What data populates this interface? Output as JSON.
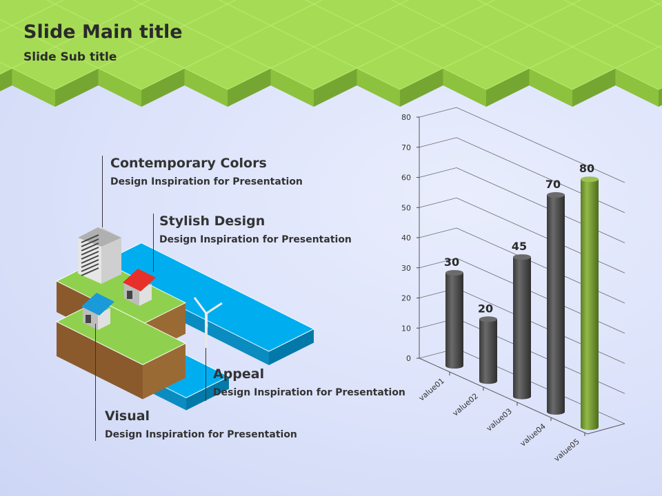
{
  "slide": {
    "title": "Slide Main title",
    "subtitle": "Slide Sub title"
  },
  "features": [
    {
      "title": "Contemporary Colors",
      "text": "Design Inspiration for Presentation"
    },
    {
      "title": "Stylish Design",
      "text": "Design Inspiration for Presentation"
    },
    {
      "title": "Appeal",
      "text": "Design Inspiration for Presentation"
    },
    {
      "title": "Visual",
      "text": "Design Inspiration for Presentation"
    }
  ],
  "colors": {
    "tile_top": "#a6dc55",
    "tile_left": "#8dc23e",
    "tile_right": "#76a632",
    "bar": "#4d4d4d",
    "highlight_bar": "#7aa036",
    "water": "#00aeef"
  },
  "chart_data": {
    "type": "bar",
    "style": "3d-cylinder",
    "categories": [
      "value01",
      "value02",
      "value03",
      "value04",
      "value05"
    ],
    "values": [
      30,
      20,
      45,
      70,
      80
    ],
    "data_labels": [
      "30",
      "20",
      "45",
      "70",
      "80"
    ],
    "highlight": "value05",
    "ylim": [
      0,
      80
    ],
    "yticks": [
      "0",
      "10",
      "20",
      "30",
      "40",
      "50",
      "60",
      "70",
      "80"
    ],
    "grid": true
  }
}
